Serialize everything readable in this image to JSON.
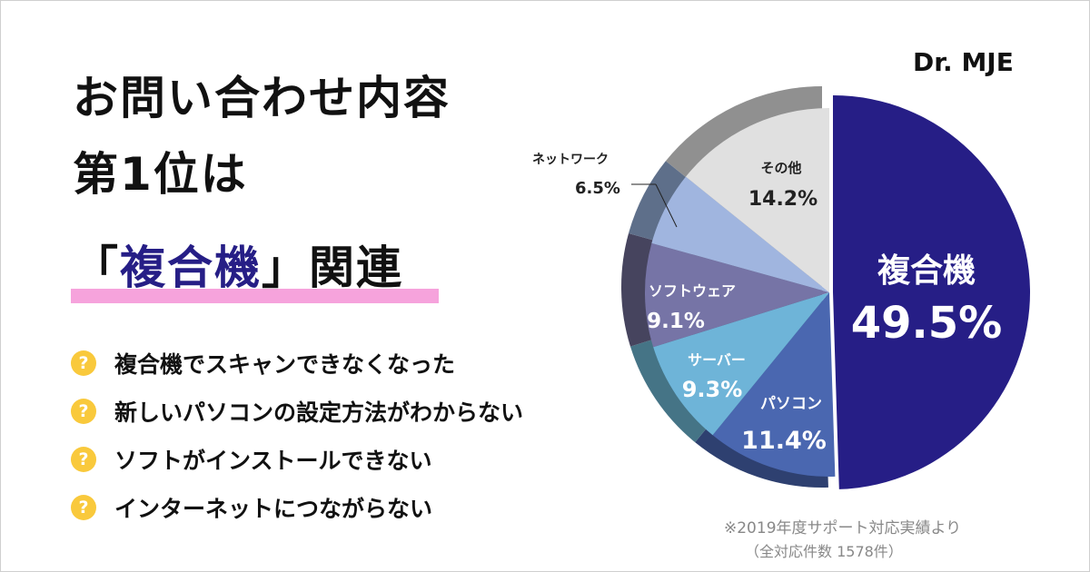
{
  "logo": "Dr. MJE",
  "headline": {
    "line1": "お問い合わせ内容",
    "line2": "第1位は",
    "line3_open": "「",
    "line3_accent": "複合機",
    "line3_close": "」関連"
  },
  "items": [
    {
      "icon": "question-icon",
      "text": "複合機でスキャンできなくなった"
    },
    {
      "icon": "question-icon",
      "text": "新しいパソコンの設定方法がわからない"
    },
    {
      "icon": "question-icon",
      "text": "ソフトがインストールできない"
    },
    {
      "icon": "question-icon",
      "text": "インターネットにつながらない"
    }
  ],
  "question_mark": "?",
  "footnote": {
    "line1": "※2019年度サポート対応実績より",
    "line2": "（全対応件数 1578件）"
  },
  "colors": {
    "accent": "#261e86",
    "highlight": "#f6a3dc",
    "icon": "#f9c93c"
  },
  "chart_data": {
    "type": "pie",
    "unit": "%",
    "slices": [
      {
        "label": "複合機",
        "value": 49.5,
        "display": "49.5%",
        "color": "#261e86",
        "rim": "#1a1460"
      },
      {
        "label": "パソコン",
        "value": 11.4,
        "display": "11.4%",
        "color": "#4a67b0",
        "rim": "#2e4070"
      },
      {
        "label": "サーバー",
        "value": 9.3,
        "display": "9.3%",
        "color": "#6eb4d8",
        "rim": "#457486"
      },
      {
        "label": "ソフトウェア",
        "value": 9.1,
        "display": "9.1%",
        "color": "#7674a6",
        "rim": "#46445e"
      },
      {
        "label": "ネットワーク",
        "value": 6.5,
        "display": "6.5%",
        "color": "#a0b5df",
        "rim": "#5e6f8a"
      },
      {
        "label": "その他",
        "value": 14.2,
        "display": "14.2%",
        "color": "#e0e0e0",
        "rim": "#909090"
      }
    ]
  }
}
